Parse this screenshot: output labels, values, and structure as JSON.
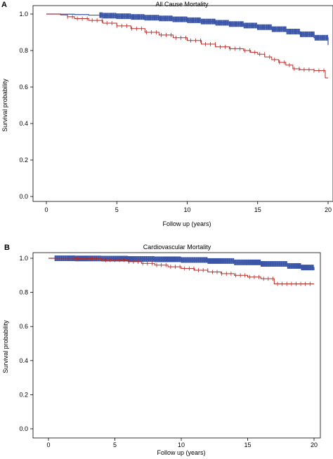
{
  "panels": [
    {
      "letter": "A",
      "title": "All Cause Mortality",
      "xlabel": "Follow up (years)",
      "ylabel": "Survival probability"
    },
    {
      "letter": "B",
      "title": "Cardiovascular Mortality",
      "xlabel": "Follow up (years)",
      "ylabel": "Survival probability"
    }
  ],
  "colors": {
    "series_blue": "#3a55a8",
    "series_red": "#b22a25"
  },
  "chart_data": [
    {
      "type": "line",
      "title": "All Cause Mortality",
      "xlabel": "Follow up (years)",
      "ylabel": "Survival probability",
      "xlim": [
        0,
        20
      ],
      "ylim": [
        0,
        1
      ],
      "xticks": [
        "0",
        "5",
        "10",
        "15",
        "20"
      ],
      "yticks": [
        "0.0",
        "0.2",
        "0.4",
        "0.6",
        "0.8",
        "1.0"
      ],
      "series": [
        {
          "color": "#3a55a8",
          "x": [
            0,
            1,
            2,
            3,
            4,
            5,
            6,
            7,
            8,
            9,
            10,
            11,
            12,
            13,
            14,
            15,
            16,
            17,
            18,
            19,
            20
          ],
          "y": [
            1.0,
            0.999,
            0.997,
            0.994,
            0.991,
            0.988,
            0.984,
            0.98,
            0.976,
            0.971,
            0.966,
            0.959,
            0.952,
            0.945,
            0.937,
            0.928,
            0.917,
            0.904,
            0.889,
            0.87,
            0.83
          ]
        },
        {
          "color": "#b22a25",
          "x": [
            0,
            1,
            1.5,
            2,
            3,
            4,
            5,
            6,
            7,
            8,
            9,
            10,
            11,
            12,
            13,
            14,
            14.5,
            15,
            15.5,
            16,
            16.5,
            17,
            17.5,
            18,
            19,
            19.8,
            20
          ],
          "y": [
            1.0,
            0.995,
            0.985,
            0.975,
            0.965,
            0.95,
            0.935,
            0.92,
            0.9,
            0.885,
            0.87,
            0.855,
            0.835,
            0.82,
            0.81,
            0.8,
            0.79,
            0.78,
            0.765,
            0.75,
            0.735,
            0.72,
            0.7,
            0.695,
            0.69,
            0.65,
            0.65
          ]
        }
      ]
    },
    {
      "type": "line",
      "title": "Cardiovascular Mortality",
      "xlabel": "Follow up (years)",
      "ylabel": "Survival probability",
      "xlim": [
        0,
        20
      ],
      "ylim": [
        0,
        1
      ],
      "xticks": [
        "0",
        "5",
        "10",
        "15",
        "20"
      ],
      "yticks": [
        "0.0",
        "0.2",
        "0.4",
        "0.6",
        "0.8",
        "1.0"
      ],
      "series": [
        {
          "color": "#3a55a8",
          "x": [
            0,
            2,
            4,
            6,
            8,
            10,
            12,
            14,
            16,
            18,
            19,
            20
          ],
          "y": [
            1.0,
            0.999,
            0.998,
            0.996,
            0.994,
            0.99,
            0.984,
            0.976,
            0.967,
            0.955,
            0.946,
            0.93
          ]
        },
        {
          "color": "#b22a25",
          "x": [
            0,
            2,
            4,
            6,
            7,
            8,
            9,
            10,
            11,
            12,
            13,
            14,
            15,
            16,
            17,
            18,
            19,
            20
          ],
          "y": [
            1.0,
            0.998,
            0.99,
            0.98,
            0.97,
            0.96,
            0.95,
            0.94,
            0.93,
            0.92,
            0.91,
            0.9,
            0.89,
            0.88,
            0.85,
            0.85,
            0.85,
            0.85
          ]
        }
      ]
    }
  ]
}
